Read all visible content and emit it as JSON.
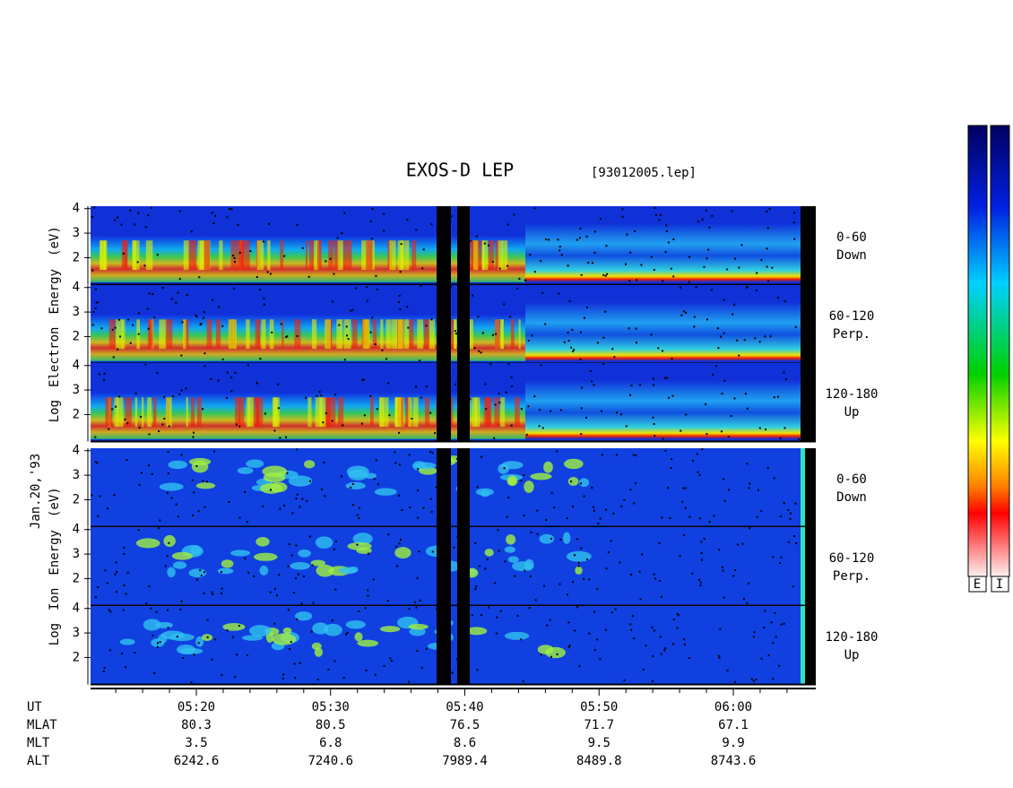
{
  "title": "EXOS-D LEP",
  "file": "[93012005.lep]",
  "date_label": "Jan.20,'93",
  "groups": [
    {
      "axis_words": [
        "Log",
        "Electron",
        "Energy",
        "(eV)"
      ],
      "panels": [
        {
          "range": "0-60",
          "dir": "Down"
        },
        {
          "range": "60-120",
          "dir": "Perp."
        },
        {
          "range": "120-180",
          "dir": "Up"
        }
      ]
    },
    {
      "axis_words": [
        "Log",
        "Ion",
        "Energy",
        "(eV)"
      ],
      "panels": [
        {
          "range": "0-60",
          "dir": "Down"
        },
        {
          "range": "60-120",
          "dir": "Perp."
        },
        {
          "range": "120-180",
          "dir": "Up"
        }
      ]
    }
  ],
  "yticks": [
    2,
    3,
    4
  ],
  "ephemeris": {
    "labels": [
      "UT",
      "MLAT",
      "MLT",
      "ALT"
    ],
    "columns": [
      [
        "05:20",
        80.3,
        3.5,
        6242.6
      ],
      [
        "05:30",
        80.5,
        6.8,
        7240.6
      ],
      [
        "05:40",
        76.5,
        8.6,
        7989.4
      ],
      [
        "05:50",
        71.7,
        9.5,
        8489.8
      ],
      [
        "06:00",
        67.1,
        9.9,
        8743.6
      ]
    ]
  },
  "colorbar_labels": [
    "E",
    "I"
  ]
}
